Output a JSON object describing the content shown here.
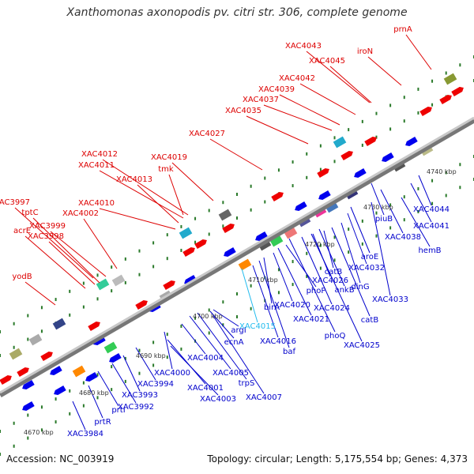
{
  "title": "Xanthomonas axonopodis pv. citri str. 306, complete genome",
  "footer": {
    "accession": "Accession: NC_003919",
    "summary": "Topology: circular; Length: 5,175,554 bp; Genes: 4,373"
  },
  "colors": {
    "forward_label": "#dd0000",
    "reverse_label": "#0000cc",
    "highlight_label": "#22bbee",
    "forward_gene": "#ee0000",
    "reverse_gene": "#0000ee",
    "backbone": "#999999",
    "tick": "#2a7a2a"
  },
  "scale_labels": [
    "4670 kbp",
    "4680 kbp",
    "4690 kbp",
    "4700 kbp",
    "4710 kbp",
    "4720 kbp",
    "4730 kbp",
    "4740 kbp"
  ],
  "forward_labels": [
    "yodB",
    "acrE",
    "XAC3998",
    "XAC3997",
    "tptC",
    "XAC3999",
    "XAC4002",
    "XAC4010",
    "XAC4013",
    "XAC4011",
    "XAC4012",
    "tmk",
    "XAC4019",
    "XAC4027",
    "XAC4035",
    "XAC4037",
    "XAC4039",
    "XAC4042",
    "XAC4043",
    "XAC4045",
    "iroN",
    "prnA"
  ],
  "reverse_labels": [
    "XAC3984",
    "prtR",
    "prtI",
    "XAC3992",
    "XAC3993",
    "XAC3994",
    "XAC4000",
    "XAC4001",
    "XAC4003",
    "XAC4004",
    "XAC4005",
    "trpS",
    "XAC4007",
    "argI",
    "ecnA",
    "XAC4015",
    "XAC4016",
    "baf",
    "birA",
    "XAC4020",
    "XAC4021",
    "phoP",
    "phoQ",
    "XAC4024",
    "XAC4025",
    "catB",
    "ankB",
    "XAC4026",
    "dinG",
    "catB",
    "XAC4032",
    "aroE",
    "XAC4033",
    "piuB",
    "XAC4038",
    "hemB",
    "XAC4041",
    "XAC4044"
  ]
}
